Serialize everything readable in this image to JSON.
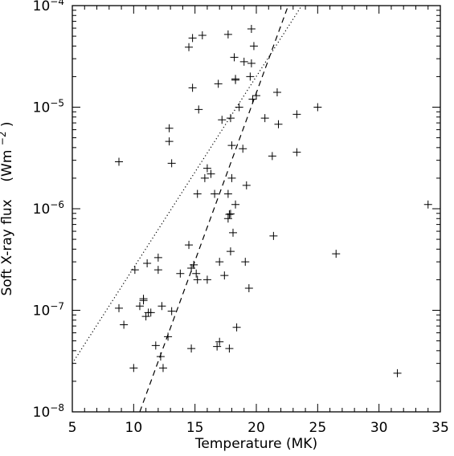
{
  "chart_data": {
    "type": "scatter",
    "xlabel": "Temperature (MK)",
    "ylabel": "Soft X-ray flux",
    "ylabel_unit_prefix": "(Wm",
    "ylabel_unit_exp": "−2",
    "ylabel_unit_suffix": ")",
    "xlim": [
      5,
      35
    ],
    "ylim": [
      1e-08,
      0.0001
    ],
    "yscale": "log",
    "grid": false,
    "x_ticks": [
      {
        "value": 5,
        "label": "5"
      },
      {
        "value": 10,
        "label": "10"
      },
      {
        "value": 15,
        "label": "15"
      },
      {
        "value": 20,
        "label": "20"
      },
      {
        "value": 25,
        "label": "25"
      },
      {
        "value": 30,
        "label": "30"
      },
      {
        "value": 35,
        "label": "35"
      }
    ],
    "y_ticks": [
      {
        "value": 1e-08,
        "base": "10",
        "exp": "−8"
      },
      {
        "value": 1e-07,
        "base": "10",
        "exp": "−7"
      },
      {
        "value": 1e-06,
        "base": "10",
        "exp": "−6"
      },
      {
        "value": 1e-05,
        "base": "10",
        "exp": "−5"
      },
      {
        "value": 0.0001,
        "base": "10",
        "exp": "−4"
      }
    ],
    "lines": [
      {
        "style": "dotted",
        "points": [
          [
            5,
            3e-08
          ],
          [
            23.7,
            0.0001
          ]
        ]
      },
      {
        "style": "dashed",
        "points": [
          [
            10.5,
            1e-08
          ],
          [
            22.6,
            0.0001
          ]
        ]
      }
    ],
    "points": [
      [
        8.8,
        2.9e-06
      ],
      [
        8.8,
        1.05e-07
      ],
      [
        9.2,
        7.2e-08
      ],
      [
        10.0,
        2.7e-08
      ],
      [
        10.1,
        2.5e-07
      ],
      [
        10.5,
        1.1e-07
      ],
      [
        10.8,
        1.3e-07
      ],
      [
        10.8,
        1.25e-07
      ],
      [
        11.0,
        8.7e-08
      ],
      [
        11.1,
        2.9e-07
      ],
      [
        11.2,
        9.5e-08
      ],
      [
        11.4,
        9.5e-08
      ],
      [
        11.8,
        4.5e-08
      ],
      [
        12.0,
        3.3e-07
      ],
      [
        12.0,
        2.5e-07
      ],
      [
        12.2,
        3.5e-08
      ],
      [
        12.3,
        1.1e-07
      ],
      [
        12.4,
        2.7e-08
      ],
      [
        12.8,
        5.5e-08
      ],
      [
        12.9,
        6.2e-06
      ],
      [
        12.9,
        4.6e-06
      ],
      [
        13.1,
        2.8e-06
      ],
      [
        13.1,
        9.8e-08
      ],
      [
        13.8,
        2.3e-07
      ],
      [
        14.5,
        3.9e-05
      ],
      [
        14.5,
        4.4e-07
      ],
      [
        14.7,
        4.2e-08
      ],
      [
        14.7,
        2.6e-07
      ],
      [
        14.8,
        1.55e-05
      ],
      [
        14.8,
        4.8e-05
      ],
      [
        14.9,
        2.8e-07
      ],
      [
        15.1,
        2.3e-07
      ],
      [
        15.2,
        2e-07
      ],
      [
        15.2,
        1.4e-06
      ],
      [
        15.3,
        9.5e-06
      ],
      [
        15.6,
        5.1e-05
      ],
      [
        15.8,
        2e-06
      ],
      [
        16.0,
        2.5e-06
      ],
      [
        16.0,
        2e-07
      ],
      [
        16.3,
        2.2e-06
      ],
      [
        16.6,
        1.4e-06
      ],
      [
        16.8,
        4.4e-08
      ],
      [
        16.9,
        1.7e-05
      ],
      [
        17.0,
        4.9e-08
      ],
      [
        17.0,
        3e-07
      ],
      [
        17.2,
        7.5e-06
      ],
      [
        17.4,
        2.2e-07
      ],
      [
        17.7,
        1.4e-06
      ],
      [
        17.7,
        8e-07
      ],
      [
        17.7,
        5.2e-05
      ],
      [
        17.8,
        8.8e-07
      ],
      [
        17.8,
        4.2e-08
      ],
      [
        17.9,
        7.8e-06
      ],
      [
        17.9,
        8.9e-07
      ],
      [
        17.9,
        3.8e-07
      ],
      [
        18.0,
        4.2e-06
      ],
      [
        18.0,
        2e-06
      ],
      [
        18.1,
        5.8e-07
      ],
      [
        18.2,
        3.1e-05
      ],
      [
        18.3,
        1.9e-05
      ],
      [
        18.3,
        1.85e-05
      ],
      [
        18.3,
        1.1e-06
      ],
      [
        18.4,
        6.8e-08
      ],
      [
        18.6,
        1e-05
      ],
      [
        18.9,
        3.9e-06
      ],
      [
        19.0,
        2.8e-05
      ],
      [
        19.1,
        3e-07
      ],
      [
        19.2,
        1.7e-06
      ],
      [
        19.4,
        1.65e-07
      ],
      [
        19.5,
        2e-05
      ],
      [
        19.6,
        5.9e-05
      ],
      [
        19.6,
        2.7e-05
      ],
      [
        19.7,
        1.2e-05
      ],
      [
        19.8,
        4e-05
      ],
      [
        20.0,
        1.3e-05
      ],
      [
        20.7,
        7.8e-06
      ],
      [
        21.3,
        3.3e-06
      ],
      [
        21.4,
        5.4e-07
      ],
      [
        21.7,
        1.4e-05
      ],
      [
        21.8,
        6.8e-06
      ],
      [
        23.3,
        8.5e-06
      ],
      [
        23.3,
        3.6e-06
      ],
      [
        25.0,
        1e-05
      ],
      [
        26.5,
        3.6e-07
      ],
      [
        31.5,
        2.4e-08
      ],
      [
        34.0,
        1.1e-06
      ]
    ]
  }
}
